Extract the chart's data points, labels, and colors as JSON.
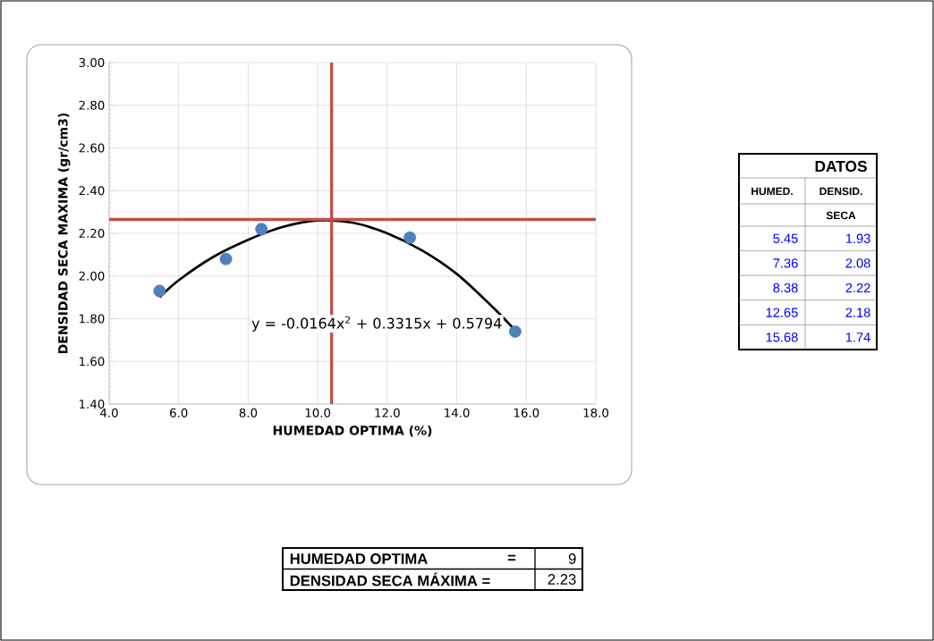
{
  "chart_data": {
    "type": "scatter",
    "xlabel": "HUMEDAD  OPTIMA  (%)",
    "ylabel": "DENSIDAD  SECA  MAXIMA  (gr/cm3)",
    "xlim": [
      4,
      18
    ],
    "ylim": [
      1.4,
      3.0
    ],
    "xticks": [
      {
        "value": 4,
        "label": "4.0"
      },
      {
        "value": 6,
        "label": "6.0"
      },
      {
        "value": 8,
        "label": "8.0"
      },
      {
        "value": 10,
        "label": "10.0"
      },
      {
        "value": 12,
        "label": "12.0"
      },
      {
        "value": 14,
        "label": "14.0"
      },
      {
        "value": 16,
        "label": "16.0"
      },
      {
        "value": 18,
        "label": "18.0"
      }
    ],
    "yticks": [
      {
        "value": 1.4,
        "label": "1.40"
      },
      {
        "value": 1.6,
        "label": "1.60"
      },
      {
        "value": 1.8,
        "label": "1.80"
      },
      {
        "value": 2.0,
        "label": "2.00"
      },
      {
        "value": 2.2,
        "label": "2.20"
      },
      {
        "value": 2.4,
        "label": "2.40"
      },
      {
        "value": 2.6,
        "label": "2.60"
      },
      {
        "value": 2.8,
        "label": "2.80"
      },
      {
        "value": 3.0,
        "label": "3.00"
      }
    ],
    "grid": true,
    "series": [
      {
        "marker": "circle",
        "color": "#4f81bd",
        "x": [
          5.45,
          7.36,
          8.38,
          12.65,
          15.68
        ],
        "values": [
          1.93,
          2.08,
          2.22,
          2.18,
          1.74
        ]
      },
      {
        "type": "line",
        "marker": "none",
        "color": "#000000",
        "x": [
          5.45,
          6,
          7,
          8,
          9,
          10,
          11,
          12,
          13,
          14,
          15,
          15.6
        ],
        "values": [
          1.9,
          1.98,
          2.09,
          2.17,
          2.23,
          2.26,
          2.25,
          2.2,
          2.12,
          2.01,
          1.86,
          1.76
        ]
      }
    ],
    "ref_lines": [
      {
        "axis": "x",
        "value": 10.4,
        "color": "#c0504d"
      },
      {
        "axis": "y",
        "value": 2.265,
        "color": "#c0504d"
      }
    ],
    "annotations": [
      "y = -0.0164x$^{2}$ + 0.3315x + 0.5794",
      "DATOS",
      "HUMED.",
      "DENSID.",
      "SECA",
      "HUMEDAD OPTIMA",
      "=",
      "9",
      "DENSIDAD SECA MÁXIMA =",
      "2.23",
      "5.45",
      "1.93",
      "7.36",
      "2.08",
      "8.38",
      "2.22",
      "12.65",
      "2.18",
      "15.68",
      "1.74"
    ]
  }
}
